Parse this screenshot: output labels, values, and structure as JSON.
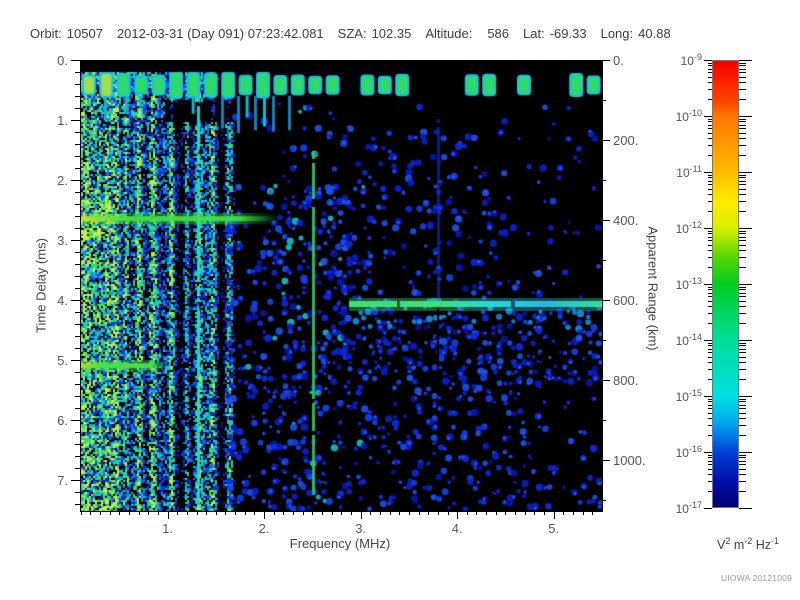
{
  "header": {
    "fields": [
      {
        "label": "Orbit:",
        "value": "10507"
      },
      {
        "label": "",
        "value": "2012-03-31 (Day 091) 07:23:42.081"
      },
      {
        "label": "SZA:",
        "value": "102.35"
      },
      {
        "label": "Altitude:",
        "value": "586"
      },
      {
        "label": "Lat:",
        "value": "-69.33"
      },
      {
        "label": "Long:",
        "value": "40.88"
      }
    ]
  },
  "credit": "UIOWA 20121009",
  "chart_data": {
    "type": "heatmap",
    "title": "Radar sounder ionogram (spectrogram)",
    "xlabel": "Frequency (MHz)",
    "ylabel_left": "Time Delay (ms)",
    "ylabel_right": "Apparent Range (km)",
    "x_range_mhz": [
      0.093,
      5.49
    ],
    "y_range_ms": [
      0,
      7.5
    ],
    "right_axis_range_km": [
      0,
      1125
    ],
    "x_ticks": [
      {
        "value": 1,
        "label": "1."
      },
      {
        "value": 2,
        "label": "2."
      },
      {
        "value": 3,
        "label": "3."
      },
      {
        "value": 4,
        "label": "4."
      },
      {
        "value": 5,
        "label": "5."
      }
    ],
    "x_minor_step_mhz": 0.1,
    "y_ticks_ms": [
      {
        "value": 0,
        "label": "0."
      },
      {
        "value": 1,
        "label": "1."
      },
      {
        "value": 2,
        "label": "2."
      },
      {
        "value": 3,
        "label": "3."
      },
      {
        "value": 4,
        "label": "4."
      },
      {
        "value": 5,
        "label": "5."
      },
      {
        "value": 6,
        "label": "6."
      },
      {
        "value": 7,
        "label": "7."
      }
    ],
    "y_minor_step_ms": 0.2,
    "y_ticks_km": [
      {
        "value": 0,
        "label": "0."
      },
      {
        "value": 200,
        "label": "200."
      },
      {
        "value": 400,
        "label": "400."
      },
      {
        "value": 600,
        "label": "600."
      },
      {
        "value": 800,
        "label": "800."
      },
      {
        "value": 1000,
        "label": "1000."
      }
    ],
    "y_minor_step_km": 100,
    "colorbar": {
      "scale": "log",
      "tick_exponents": [
        -9,
        -10,
        -11,
        -12,
        -13,
        -14,
        -15,
        -16,
        -17
      ],
      "units_parts": [
        {
          "base": "V",
          "exp": "2"
        },
        {
          "base": "m",
          "exp": "-2"
        },
        {
          "base": "Hz",
          "exp": "-1"
        }
      ],
      "gradient": [
        {
          "pos": 0.0,
          "color": "#f40000"
        },
        {
          "pos": 0.09,
          "color": "#ff4400"
        },
        {
          "pos": 0.125,
          "color": "#ff7700"
        },
        {
          "pos": 0.25,
          "color": "#ffbb00"
        },
        {
          "pos": 0.32,
          "color": "#fcee00"
        },
        {
          "pos": 0.375,
          "color": "#d8ee00"
        },
        {
          "pos": 0.44,
          "color": "#55d800"
        },
        {
          "pos": 0.5,
          "color": "#00cc22"
        },
        {
          "pos": 0.625,
          "color": "#00dd99"
        },
        {
          "pos": 0.75,
          "color": "#00e0e0"
        },
        {
          "pos": 0.81,
          "color": "#00aaee"
        },
        {
          "pos": 0.875,
          "color": "#0044d8"
        },
        {
          "pos": 0.94,
          "color": "#0011aa"
        },
        {
          "pos": 1.0,
          "color": "#000077"
        }
      ]
    },
    "features": {
      "blank_top_ms": 0.18,
      "transmit_band": {
        "t_range": [
          0.22,
          0.58
        ],
        "f_range": [
          0.093,
          5.49
        ],
        "colors": [
          "#17c2e8",
          "#2fd96a"
        ]
      },
      "horizontal_lines": [
        {
          "t": 2.62,
          "f_range": [
            0.093,
            2.15
          ],
          "color": "#3fe03f",
          "left_color": "#b8e832"
        },
        {
          "t": 5.07,
          "f_range": [
            0.093,
            1.0
          ],
          "color": "#49e04a",
          "left_color": "#aade3a"
        }
      ],
      "surface_echo_line": {
        "t": 4.05,
        "f_range": [
          2.87,
          5.49
        ],
        "colors": [
          "#3fe07a",
          "#2ad8d8"
        ]
      },
      "surface_echo_cloud": {
        "t_range": [
          3.95,
          5.35
        ],
        "f_range": [
          2.55,
          5.49
        ]
      },
      "noise_band_max_f": 1.95,
      "noise_columns_f": [
        0.115,
        0.135,
        0.175,
        0.22,
        0.28,
        0.35,
        0.44,
        0.55,
        0.68,
        0.83,
        1.02,
        1.18,
        1.3,
        1.45,
        1.62
      ],
      "vertical_lines": [
        {
          "f": 1.3,
          "t_range": [
            0.22,
            7.5
          ],
          "color": "#25ddd0"
        },
        {
          "f": 2.5,
          "t_range": [
            1.5,
            7.2
          ],
          "color": "#2ecc55"
        },
        {
          "f": 3.79,
          "t_range": [
            0.9,
            4.0
          ],
          "color": "#1432cc"
        }
      ],
      "noise_seed": 1234567
    }
  }
}
